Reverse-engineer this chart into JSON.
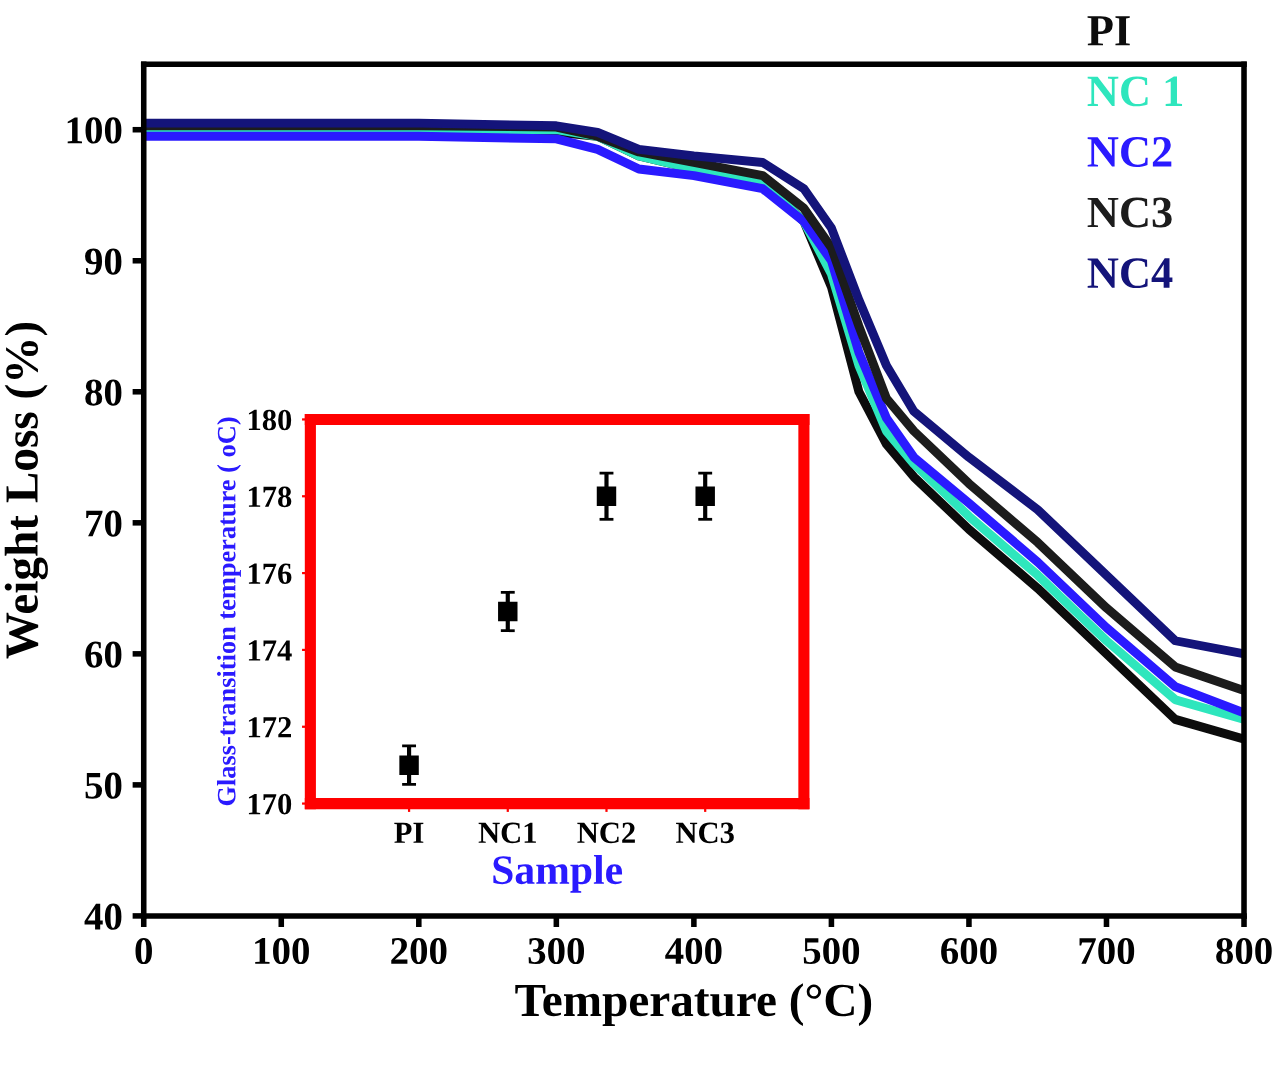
{
  "chart_data": [
    {
      "type": "line",
      "xlabel": "Temperature (°C)",
      "ylabel": "Weight Loss (%)",
      "x": [
        0,
        100,
        200,
        300,
        330,
        360,
        400,
        450,
        480,
        500,
        520,
        540,
        560,
        600,
        650,
        700,
        750,
        800
      ],
      "xlim": [
        0,
        800
      ],
      "xticks": [
        0,
        100,
        200,
        300,
        400,
        500,
        600,
        700,
        800
      ],
      "ylim": [
        40,
        105
      ],
      "yticks": [
        40,
        50,
        60,
        70,
        80,
        90,
        100
      ],
      "grid": false,
      "legend": "top right",
      "marker": "none",
      "line_style": "solid",
      "series": [
        {
          "name": "PI",
          "color": "#0c0c0c",
          "values": [
            100,
            100,
            100,
            99.8,
            99.5,
            98,
            97,
            96,
            93,
            88,
            80,
            76,
            73.5,
            69.5,
            65,
            60,
            55,
            53.5
          ]
        },
        {
          "name": "NC 1",
          "color": "#2ee6bd",
          "values": [
            100,
            100,
            100,
            100,
            99.5,
            98,
            97,
            96,
            93,
            89,
            82,
            77,
            74.5,
            70.5,
            66,
            61,
            56.5,
            55
          ]
        },
        {
          "name": "NC2",
          "color": "#2a1aff",
          "values": [
            99.5,
            99.5,
            99.5,
            99.3,
            98.5,
            97,
            96.5,
            95.5,
            93,
            90,
            83,
            78,
            75,
            71.5,
            67,
            62,
            57.5,
            55.5
          ]
        },
        {
          "name": "NC3",
          "color": "#1c1c1c",
          "values": [
            100.3,
            100.3,
            100.3,
            100.2,
            99.5,
            98.3,
            97.5,
            96.5,
            94,
            91,
            85,
            79.5,
            77,
            73,
            68.5,
            63.5,
            59,
            57.2
          ]
        },
        {
          "name": "NC4",
          "color": "#14147a",
          "values": [
            100.5,
            100.5,
            100.5,
            100.3,
            99.8,
            98.5,
            98,
            97.5,
            95.5,
            92.5,
            87,
            82,
            78.5,
            75,
            71,
            66,
            61,
            60
          ]
        }
      ]
    },
    {
      "type": "scatter",
      "xlabel": "Sample",
      "ylabel": "Glass-transition temperature ( oC)",
      "categories": [
        "PI",
        "NC1",
        "NC2",
        "NC3"
      ],
      "ylim": [
        170,
        180
      ],
      "yticks": [
        170,
        172,
        174,
        176,
        178,
        180
      ],
      "grid": false,
      "marker": "square",
      "series": [
        {
          "color": "#000000",
          "values": [
            171,
            175,
            178,
            178
          ],
          "errors": [
            0.5,
            0.5,
            0.6,
            0.6
          ]
        }
      ]
    }
  ]
}
